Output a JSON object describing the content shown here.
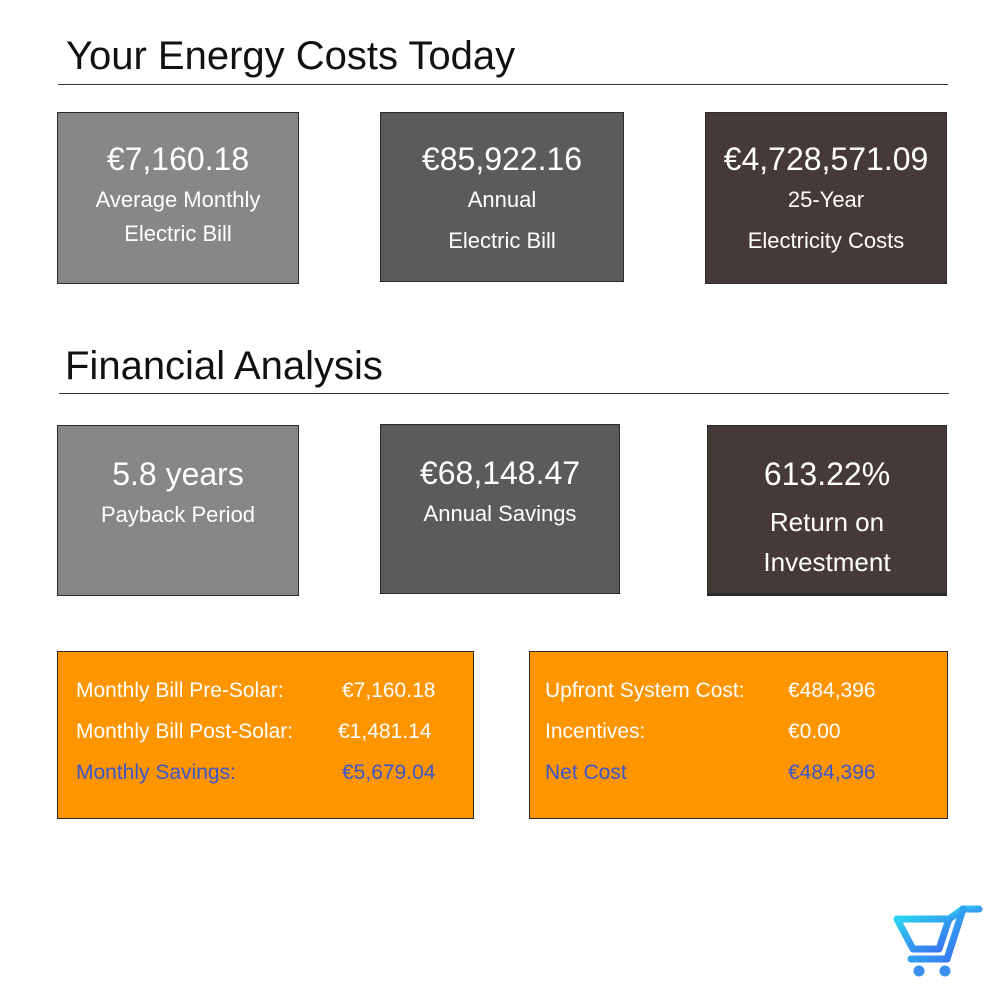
{
  "energy_costs": {
    "title": "Your Energy Costs Today",
    "cards": [
      {
        "value": "€7,160.18",
        "label_line1": "Average Monthly",
        "label_line2": "Electric Bill"
      },
      {
        "value": "€85,922.16",
        "label_line1": "Annual",
        "label_line2": "Electric Bill"
      },
      {
        "value": "€4,728,571.09",
        "label_line1": "25-Year",
        "label_line2": "Electricity Costs"
      }
    ]
  },
  "financial_analysis": {
    "title": "Financial Analysis",
    "cards": [
      {
        "value": "5.8 years",
        "label_line1": "Payback Period"
      },
      {
        "value": "€68,148.47",
        "label_line1": "Annual Savings"
      },
      {
        "value": "613.22%",
        "label_line1": "Return on",
        "label_line2": "Investment"
      }
    ]
  },
  "bill_summary": {
    "rows": [
      {
        "label": "Monthly Bill Pre-Solar:",
        "value": "€7,160.18"
      },
      {
        "label": "Monthly Bill Post-Solar:",
        "value": "€1,481.14"
      },
      {
        "label": "Monthly Savings:",
        "value": "€5,679.04"
      }
    ]
  },
  "cost_summary": {
    "rows": [
      {
        "label": "Upfront System Cost:",
        "value": "€484,396"
      },
      {
        "label": "Incentives:",
        "value": "€0.00"
      },
      {
        "label": "Net Cost",
        "value": "€484,396"
      }
    ]
  },
  "colors": {
    "card_light": "#878787",
    "card_mid": "#5b5b5b",
    "card_dark": "#453a37",
    "summary_bg": "#fc9500",
    "highlight_text": "#3d56c8",
    "logo_gradient_start": "#2ad4f0",
    "logo_gradient_end": "#3a6ff0"
  },
  "logo": {
    "icon": "shopping-cart-icon"
  }
}
